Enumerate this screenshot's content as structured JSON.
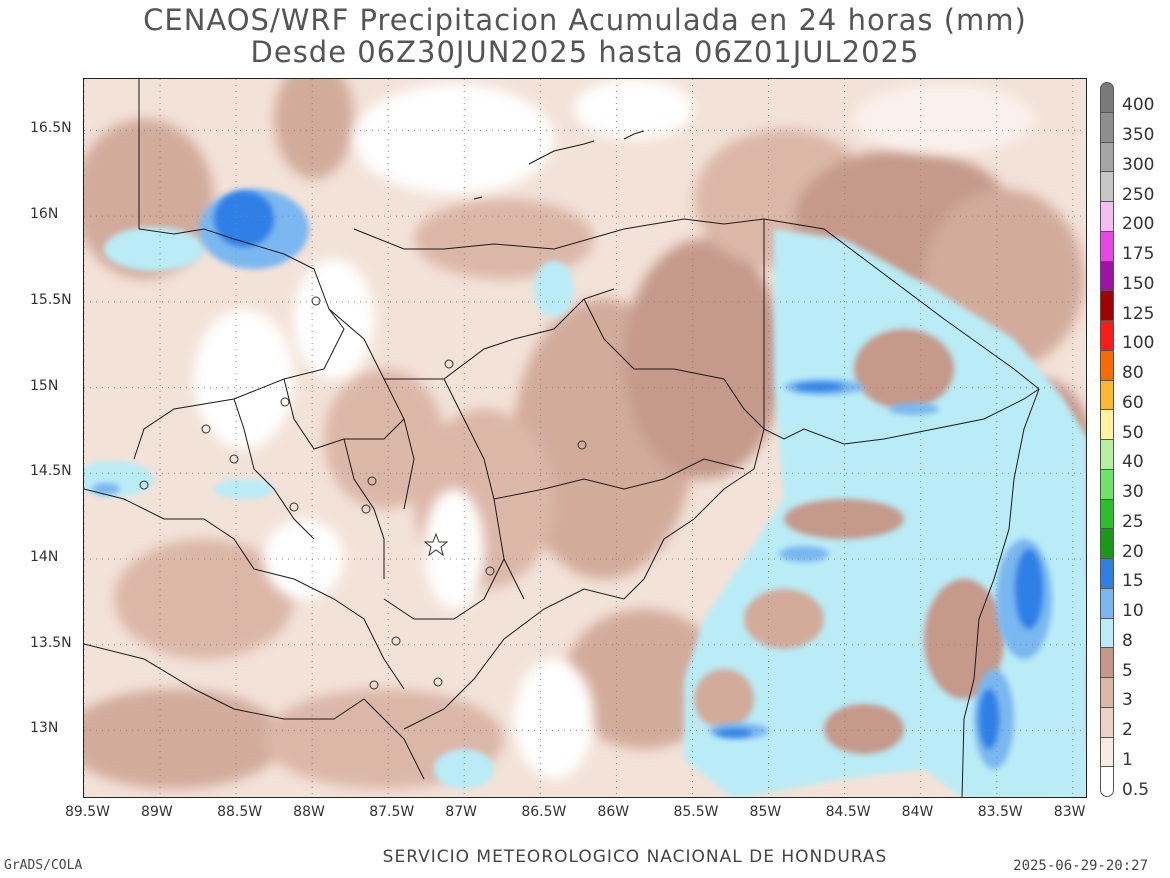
{
  "title_line1": "CENAOS/WRF Precipitacion Acumulada en 24 horas (mm)",
  "title_line2": "Desde 06Z30JUN2025 hasta 06Z01JUL2025",
  "footer": {
    "left": "GrADS/COLA",
    "center": "SERVICIO METEOROLOGICO NACIONAL DE HONDURAS",
    "right": "2025-06-29-20:27"
  },
  "axes": {
    "lon_labels": [
      "89.5W",
      "89W",
      "88.5W",
      "88W",
      "87.5W",
      "87W",
      "86.5W",
      "86W",
      "85.5W",
      "85W",
      "84.5W",
      "84W",
      "83.5W",
      "83W"
    ],
    "lat_labels": [
      "16.5N",
      "16N",
      "15.5N",
      "15N",
      "14.5N",
      "14N",
      "13.5N",
      "13N"
    ],
    "lon_range": [
      -89.5,
      -82.9
    ],
    "lat_range": [
      12.6,
      16.8
    ]
  },
  "legend": {
    "labels": [
      "400",
      "350",
      "300",
      "250",
      "200",
      "175",
      "150",
      "125",
      "100",
      "80",
      "60",
      "50",
      "40",
      "30",
      "25",
      "20",
      "15",
      "10",
      "8",
      "5",
      "3",
      "2",
      "1",
      "0.5"
    ],
    "colors": [
      "#7a7a7a",
      "#8e8e8e",
      "#a6a6a6",
      "#c6c6c6",
      "#f4bdf4",
      "#e846e8",
      "#a210a8",
      "#a30000",
      "#ff1a1a",
      "#ff6a00",
      "#ffb732",
      "#fff3a0",
      "#b6f1a3",
      "#6de36a",
      "#2bbf2b",
      "#179b17",
      "#2f7fe6",
      "#7ab7f0",
      "#b9ecf6",
      "#c6988a",
      "#dbb7a8",
      "#ecd2c6",
      "#f7ece3",
      "#ffffff"
    ]
  },
  "colors": {
    "dry": "#ffffff",
    "light": "#f1ddd2",
    "moderate": "#d9b5a6",
    "heavy_brown": "#c59a8b",
    "wet_cyan": "#b9ecf6",
    "wet_blue": "#7ab7f0",
    "very_wet": "#2f7fe6",
    "border": "#1a1a1a"
  },
  "map_features": [
    "honduras-departments",
    "guatemala-border",
    "el-salvador-border",
    "nicaragua-border",
    "bay-islands",
    "swan-islands",
    "caribbean-sea",
    "gulf-of-fonseca"
  ]
}
